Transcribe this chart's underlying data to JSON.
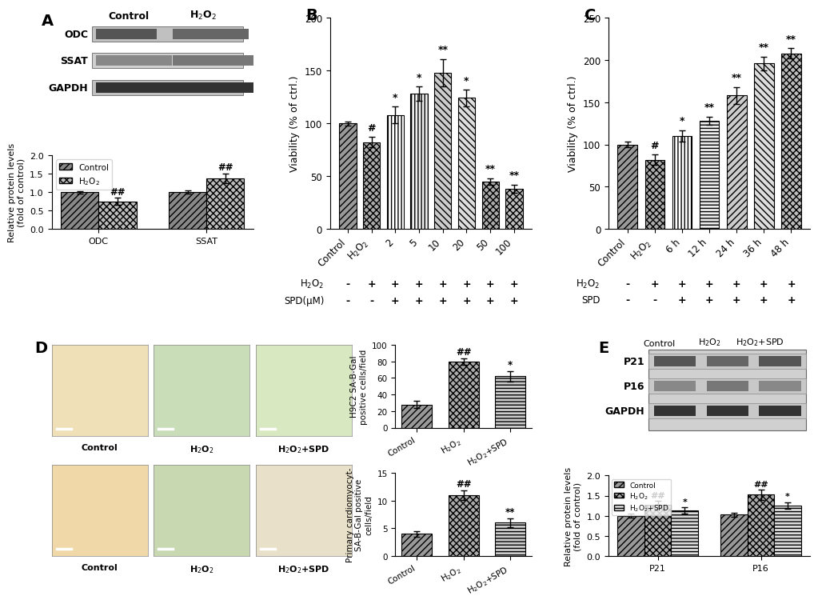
{
  "panel_A": {
    "bar_groups": [
      "ODC",
      "SSAT"
    ],
    "group_labels": [
      "Control",
      "H$_2$O$_2$"
    ],
    "values": [
      [
        1.0,
        0.75
      ],
      [
        1.0,
        1.37
      ]
    ],
    "errors": [
      [
        0.03,
        0.09
      ],
      [
        0.04,
        0.13
      ]
    ],
    "ylabel": "Relative protein levels\n(fold of control)",
    "ylim": [
      0.0,
      2.0
    ],
    "yticks": [
      0.0,
      0.5,
      1.0,
      1.5,
      2.0
    ],
    "annotations": [
      [
        "",
        "##"
      ],
      [
        "",
        "##"
      ]
    ]
  },
  "panel_B": {
    "categories": [
      "Control",
      "H$_2$O$_2$",
      "2",
      "5",
      "10",
      "20",
      "50",
      "100"
    ],
    "values": [
      100,
      82,
      108,
      128,
      148,
      124,
      45,
      38
    ],
    "errors": [
      2,
      5,
      8,
      7,
      13,
      8,
      3,
      4
    ],
    "ylabel": "Viability (% of ctrl.)",
    "ylim": [
      0,
      200
    ],
    "yticks": [
      0,
      50,
      100,
      150,
      200
    ],
    "annotations": [
      "",
      "#",
      "*",
      "*",
      "**",
      "*",
      "**",
      "**"
    ],
    "h2o2_row": [
      "-",
      "+",
      "+",
      "+",
      "+",
      "+",
      "+",
      "+"
    ],
    "spd_row": [
      "-",
      "-",
      "+",
      "+",
      "+",
      "+",
      "+",
      "+"
    ]
  },
  "panel_C": {
    "categories": [
      "Control",
      "H$_2$O$_2$",
      "6 h",
      "12 h",
      "24 h",
      "36 h",
      "48 h"
    ],
    "values": [
      100,
      82,
      110,
      128,
      158,
      196,
      208
    ],
    "errors": [
      3,
      6,
      7,
      5,
      10,
      8,
      6
    ],
    "ylabel": "Viability (% of ctrl.)",
    "ylim": [
      0,
      250
    ],
    "yticks": [
      0,
      50,
      100,
      150,
      200,
      250
    ],
    "annotations": [
      "",
      "#",
      "*",
      "**",
      "**",
      "**",
      "**"
    ],
    "h2o2_row": [
      "-",
      "+",
      "+",
      "+",
      "+",
      "+",
      "+"
    ],
    "spd_row": [
      "-",
      "-",
      "+",
      "+",
      "+",
      "+",
      "+"
    ]
  },
  "panel_D_top": {
    "categories": [
      "Control",
      "H$_2$O$_2$",
      "H$_2$O$_2$+SPD"
    ],
    "values": [
      28,
      80,
      62
    ],
    "errors": [
      4,
      4,
      6
    ],
    "ylabel": "H9C2 SA-B-Gal\npositive cells/field",
    "ylim": [
      0,
      100
    ],
    "yticks": [
      0,
      20,
      40,
      60,
      80,
      100
    ],
    "annotations": [
      "",
      "##",
      "*"
    ]
  },
  "panel_D_bottom": {
    "categories": [
      "Control",
      "H$_2$O$_2$",
      "H$_2$O$_2$+SPD"
    ],
    "values": [
      4,
      11,
      6
    ],
    "errors": [
      0.5,
      0.8,
      0.8
    ],
    "ylabel": "Primary cardiomyocyt-\nSA-B-Gal positive\ncells/field",
    "ylim": [
      0,
      15
    ],
    "yticks": [
      0,
      5,
      10,
      15
    ],
    "annotations": [
      "",
      "##",
      "**"
    ]
  },
  "panel_E": {
    "bar_groups": [
      "P21",
      "P16"
    ],
    "group_labels": [
      "Control",
      "H$_2$O$_2$",
      "H$_2$O$_2$+SPD"
    ],
    "values": [
      [
        1.0,
        1.27,
        1.13
      ],
      [
        1.03,
        1.52,
        1.26
      ]
    ],
    "errors": [
      [
        0.05,
        0.1,
        0.08
      ],
      [
        0.05,
        0.12,
        0.08
      ]
    ],
    "ylabel": "Relative protein levels\n(fold of control)",
    "ylim": [
      0.0,
      2.0
    ],
    "yticks": [
      0.0,
      0.5,
      1.0,
      1.5,
      2.0
    ],
    "annotations": [
      [
        "",
        "##",
        "*"
      ],
      [
        "",
        "##",
        "*"
      ]
    ]
  }
}
